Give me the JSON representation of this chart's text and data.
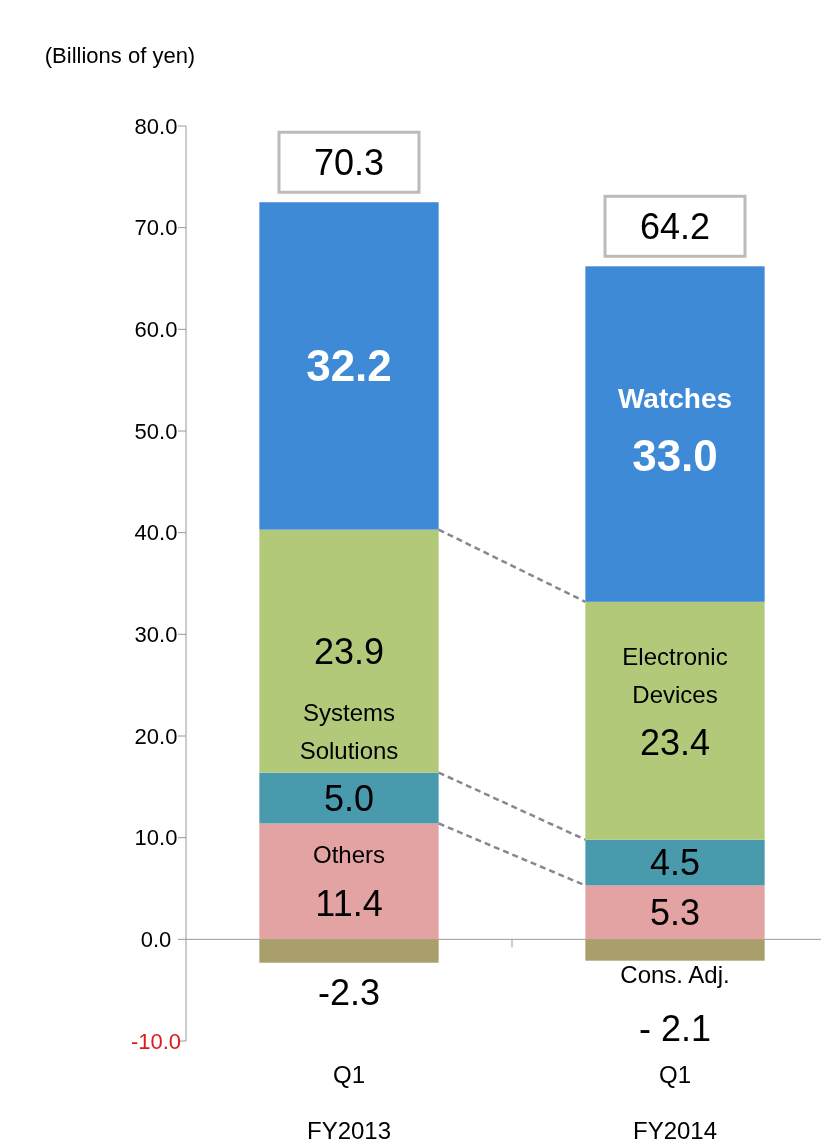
{
  "chart_data": {
    "type": "bar",
    "stacked": true,
    "ylabel": "(Billions of yen)",
    "categories": [
      "Q1\nFY2013",
      "Q1\nFY2014"
    ],
    "series": [
      {
        "name": "Others",
        "color": "#e3a3a3",
        "values": [
          11.4,
          5.3
        ],
        "value_labels": [
          "11.4",
          "5.3"
        ]
      },
      {
        "name": "Systems Solutions",
        "color": "#4a9aae",
        "values": [
          5.0,
          4.5
        ],
        "value_labels": [
          "5.0",
          "4.5"
        ]
      },
      {
        "name": "Electronic Devices",
        "color": "#b3c97a",
        "values": [
          23.9,
          23.4
        ],
        "value_labels": [
          "23.9",
          "23.4"
        ]
      },
      {
        "name": "Watches",
        "color": "#3f8ad6",
        "values": [
          32.2,
          33.0
        ],
        "value_labels": [
          "32.2",
          "33.0"
        ]
      },
      {
        "name": "Cons. Adj.",
        "color": "#a89f6a",
        "values": [
          -2.3,
          -2.1
        ],
        "value_labels": [
          "-2.3",
          "- 2.1"
        ]
      }
    ],
    "totals": [
      "70.3",
      "64.2"
    ],
    "ylim": [
      -10,
      80
    ],
    "yticks": [
      {
        "value": -10,
        "label": "-10.0"
      },
      {
        "value": 0,
        "label": "0.0"
      },
      {
        "value": 10,
        "label": "10.0"
      },
      {
        "value": 20,
        "label": "20.0"
      },
      {
        "value": 30,
        "label": "30.0"
      },
      {
        "value": 40,
        "label": "40.0"
      },
      {
        "value": 50,
        "label": "50.0"
      },
      {
        "value": 60,
        "label": "60.0"
      },
      {
        "value": 70,
        "label": "70.0"
      },
      {
        "value": 80,
        "label": "80.0"
      }
    ]
  }
}
